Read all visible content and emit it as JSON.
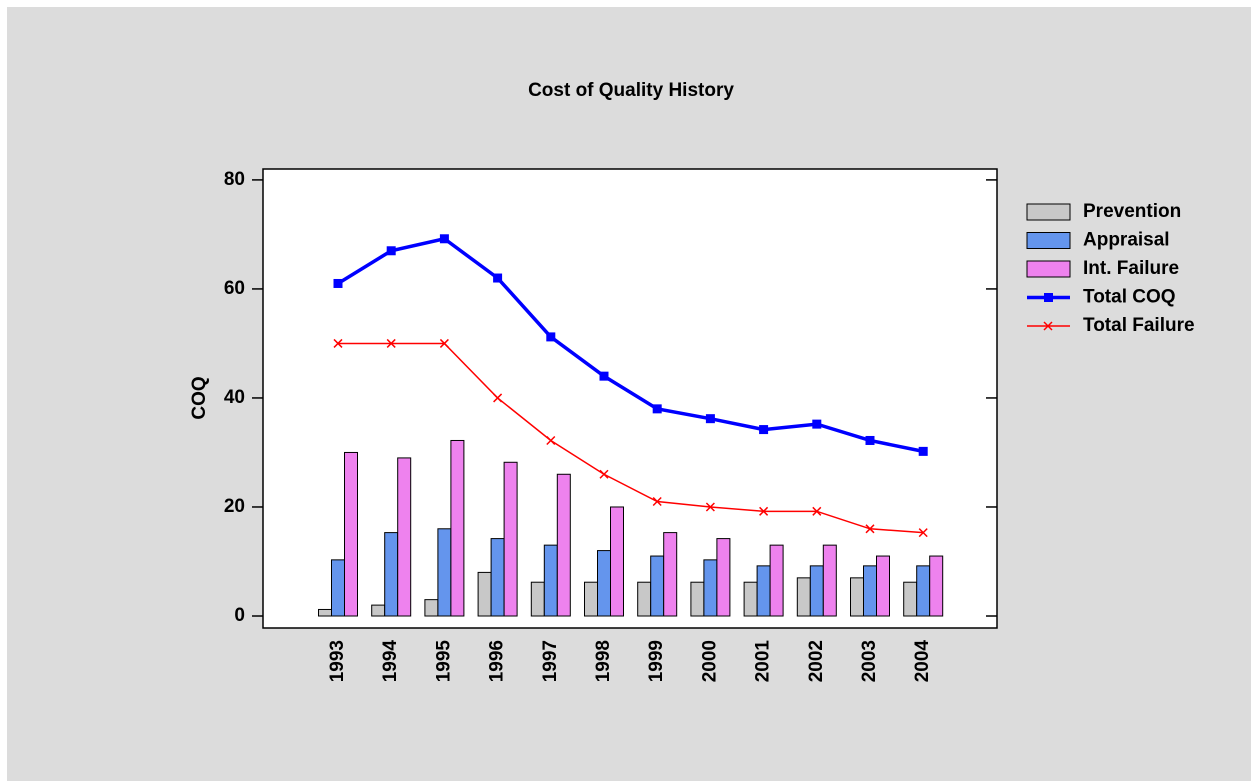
{
  "chart_data": {
    "type": "combo",
    "title": "Cost of Quality History",
    "y_label": "COQ",
    "categories": [
      "1993",
      "1994",
      "1995",
      "1996",
      "1997",
      "1998",
      "1999",
      "2000",
      "2001",
      "2002",
      "2003",
      "2004"
    ],
    "ylim": [
      -2.2,
      82
    ],
    "yticks": [
      0,
      20,
      40,
      60,
      80
    ],
    "series": [
      {
        "name": "Prevention",
        "type": "bar",
        "color": "#c8c8c8",
        "values": [
          1.2,
          2,
          3,
          8,
          6.2,
          6.2,
          6.2,
          6.2,
          6.2,
          7,
          7,
          6.2
        ]
      },
      {
        "name": "Appraisal",
        "type": "bar",
        "color": "#6495ed",
        "values": [
          10.3,
          15.3,
          16,
          14.2,
          13,
          12,
          11,
          10.3,
          9.2,
          9.2,
          9.2,
          9.2
        ]
      },
      {
        "name": "Int. Failure",
        "type": "bar",
        "color": "#ee82ee",
        "values": [
          30,
          29,
          32.2,
          28.2,
          26,
          20,
          15.3,
          14.2,
          13,
          13,
          11,
          11
        ]
      },
      {
        "name": "Total COQ",
        "type": "line",
        "marker": "square",
        "color": "#0000ff",
        "values": [
          61,
          67,
          69.2,
          62,
          51.2,
          44,
          38,
          36.2,
          34.2,
          35.2,
          32.2,
          30.2
        ]
      },
      {
        "name": "Total Failure",
        "type": "line",
        "marker": "x",
        "color": "#ff0000",
        "values": [
          50,
          50,
          50,
          40,
          32.2,
          26,
          21,
          20,
          19.2,
          19.2,
          16,
          15.3
        ]
      }
    ]
  }
}
